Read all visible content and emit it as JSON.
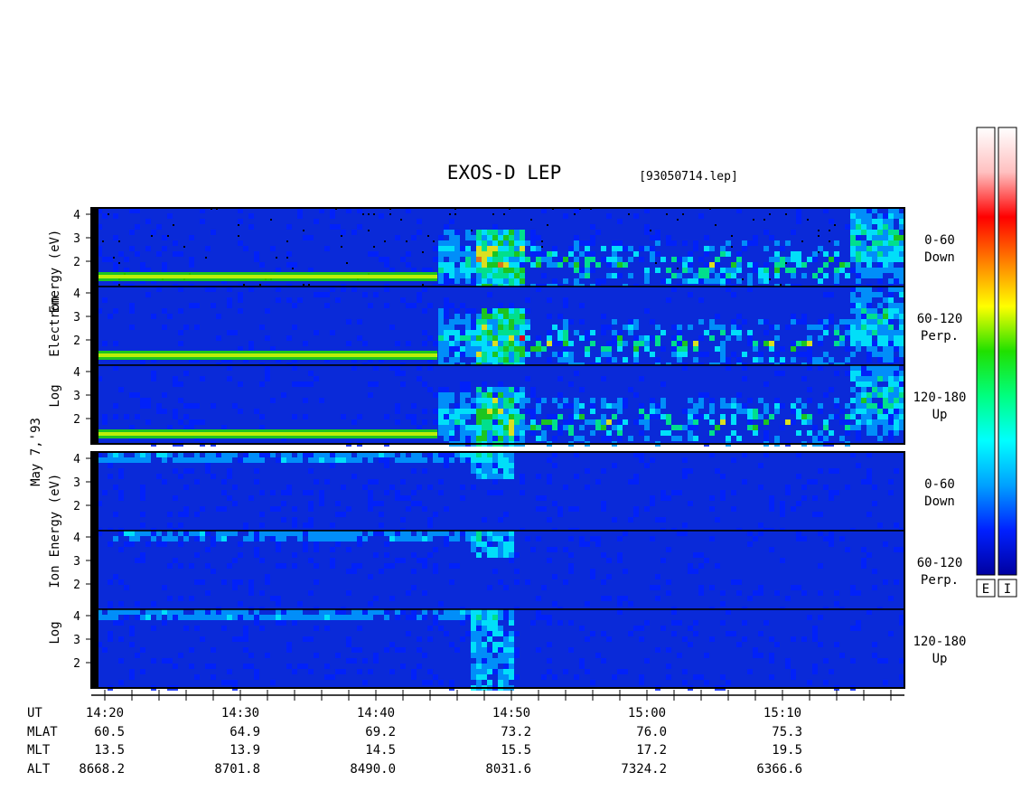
{
  "chart_data": {
    "type": "heatmap",
    "title": "EXOS-D LEP",
    "subtitle": "[93050714.lep]",
    "date_label": "May 7,'93",
    "scale": "log",
    "sections": [
      {
        "species": "Electron",
        "ylabel": [
          "Log",
          "Electron",
          "Energy (eV)"
        ],
        "panels": [
          {
            "pitch_angle": "0-60",
            "direction": "Down"
          },
          {
            "pitch_angle": "60-120",
            "direction": "Perp."
          },
          {
            "pitch_angle": "120-180",
            "direction": "Up"
          }
        ]
      },
      {
        "species": "Ion",
        "ylabel": [
          "Log",
          "Ion",
          "Energy (eV)"
        ],
        "panels": [
          {
            "pitch_angle": "0-60",
            "direction": "Down"
          },
          {
            "pitch_angle": "60-120",
            "direction": "Perp."
          },
          {
            "pitch_angle": "120-180",
            "direction": "Up"
          }
        ]
      }
    ],
    "y_ticks": [
      "4",
      "3",
      "2"
    ],
    "x_axis": {
      "row_labels": [
        "UT",
        "MLAT",
        "MLT",
        "ALT"
      ],
      "UT": [
        "14:20",
        "14:30",
        "14:40",
        "14:50",
        "15:00",
        "15:10"
      ],
      "MLAT": [
        "60.5",
        "64.9",
        "69.2",
        "73.2",
        "76.0",
        "75.3"
      ],
      "MLT": [
        "13.5",
        "13.9",
        "14.5",
        "15.5",
        "17.2",
        "19.5"
      ],
      "ALT": [
        "8668.2",
        "8701.8",
        "8490.0",
        "8031.6",
        "7324.2",
        "6366.6"
      ]
    },
    "colorbars": [
      {
        "label": "E"
      },
      {
        "label": "I"
      }
    ],
    "colormap": [
      "#0000a0",
      "#0020ff",
      "#00a0ff",
      "#00ffff",
      "#00ff80",
      "#20e000",
      "#ffff00",
      "#ff8000",
      "#ff0000",
      "#ffc0c0",
      "#ffffff"
    ]
  }
}
